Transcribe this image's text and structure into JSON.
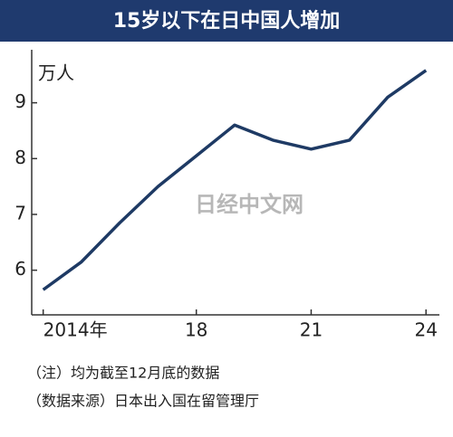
{
  "chart_data": {
    "type": "line",
    "title": "15岁以下在日中国人增加",
    "y_unit": "万人",
    "x": [
      2014,
      2015,
      2016,
      2017,
      2018,
      2019,
      2020,
      2021,
      2022,
      2023,
      2024
    ],
    "series": [
      {
        "name": "15岁以下在日中国人",
        "color": "#1e3a64",
        "values": [
          5.65,
          6.15,
          6.85,
          7.5,
          8.05,
          8.6,
          8.33,
          8.17,
          8.33,
          9.1,
          9.58
        ]
      }
    ],
    "xlim": [
      2013.7,
      2024.35
    ],
    "xticks": [
      {
        "value": 2014,
        "label": "2014年"
      },
      {
        "value": 2018,
        "label": "18"
      },
      {
        "value": 2021,
        "label": "21"
      },
      {
        "value": 2024,
        "label": "24"
      }
    ],
    "ylim": [
      5.2,
      9.95
    ],
    "yticks": [
      6,
      7,
      8,
      9
    ],
    "watermark": "日经中文网",
    "notes": [
      "（注）均为截至12月底的数据",
      "（数据来源）日本出入国在留管理厅"
    ]
  }
}
